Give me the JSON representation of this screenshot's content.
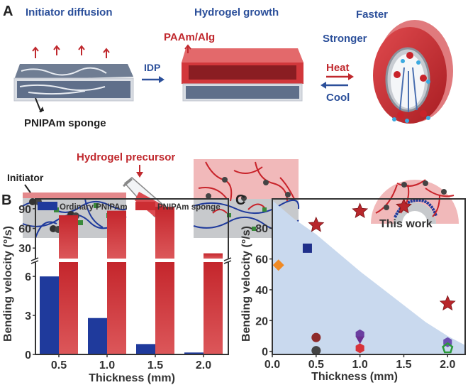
{
  "panel_a": {
    "letter": "A",
    "initiator_diffusion": "Initiator diffusion",
    "hydrogel_growth": "Hydrogel growth",
    "faster": "Faster",
    "stronger": "Stronger",
    "paam_alg": "PAAm/Alg",
    "idp": "IDP",
    "heat": "Heat",
    "cool": "Cool",
    "pnipam_sponge": "PNIPAm sponge",
    "hydrogel_precursor": "Hydrogel precursor",
    "initiator": "Initiator"
  },
  "colors": {
    "blue": "#1f3a9c",
    "red": "#cc2e33",
    "label_blue": "#2b4f9a",
    "label_red": "#c0282d",
    "shade": "#c9d9ee"
  },
  "chart_data": [
    {
      "panel": "B",
      "type": "bar",
      "categories": [
        "0.5",
        "1.0",
        "1.5",
        "2.0"
      ],
      "xlabel": "Thickness (mm)",
      "ylabel": "Bending velocity (°/s)",
      "broken_axis": {
        "lower": [
          0,
          7.1
        ],
        "upper": [
          14,
          105
        ]
      },
      "yticks_lower": [
        0,
        3,
        6
      ],
      "yticks_upper": [
        30,
        60,
        90
      ],
      "legend_position": "top",
      "series": [
        {
          "name": "Ordinary PNIPAm",
          "color": "#1f3a9c",
          "values": [
            6.0,
            2.8,
            0.8,
            0.15
          ]
        },
        {
          "name": "PNIPAm sponge",
          "color": "#cc2e33",
          "values": [
            80,
            87,
            93,
            22
          ]
        }
      ]
    },
    {
      "panel": "C",
      "type": "scatter",
      "xlabel": "Thickness (mm)",
      "ylabel": "Bending velocity (°/s)",
      "xlim": [
        0,
        2.2
      ],
      "ylim": [
        -2,
        99
      ],
      "xticks": [
        "0.0",
        "0.5",
        "1.0",
        "1.5",
        "2.0"
      ],
      "yticks": [
        "0",
        "20",
        "40",
        "60",
        "80"
      ],
      "annotation": "This work",
      "shaded_region_boundary": {
        "x": [
          0,
          0.25,
          0.5,
          0.75,
          1.0,
          1.25,
          1.5,
          1.75,
          2.0,
          2.2
        ],
        "y": [
          98,
          86,
          76,
          64,
          52,
          41,
          30,
          19,
          10,
          4
        ]
      },
      "points": [
        {
          "x": 0.5,
          "y": 82,
          "marker": "star",
          "color": "#b8262b"
        },
        {
          "x": 1.0,
          "y": 91,
          "marker": "star",
          "color": "#b8262b"
        },
        {
          "x": 1.5,
          "y": 94,
          "marker": "star",
          "color": "#b8262b"
        },
        {
          "x": 2.0,
          "y": 31,
          "marker": "star",
          "color": "#b8262b"
        },
        {
          "x": 0.4,
          "y": 67,
          "marker": "square",
          "color": "#1f2f8a"
        },
        {
          "x": 0.07,
          "y": 56,
          "marker": "diamond",
          "color": "#f08a24"
        },
        {
          "x": 0.5,
          "y": 9,
          "marker": "circle",
          "color": "#8e2a2a"
        },
        {
          "x": 0.5,
          "y": 0.5,
          "marker": "circle",
          "color": "#444444"
        },
        {
          "x": 1.0,
          "y": 11,
          "marker": "hexagon",
          "color": "#6b3fa0"
        },
        {
          "x": 1.0,
          "y": 8,
          "marker": "triangle-down",
          "color": "#6b2f90"
        },
        {
          "x": 1.0,
          "y": 2,
          "marker": "hexagon",
          "color": "#d8343a"
        },
        {
          "x": 2.0,
          "y": 6,
          "marker": "hexagon",
          "color": "#6b50b0"
        },
        {
          "x": 2.0,
          "y": 2,
          "marker": "pentagon",
          "color": "#2a9a3a"
        }
      ]
    }
  ]
}
